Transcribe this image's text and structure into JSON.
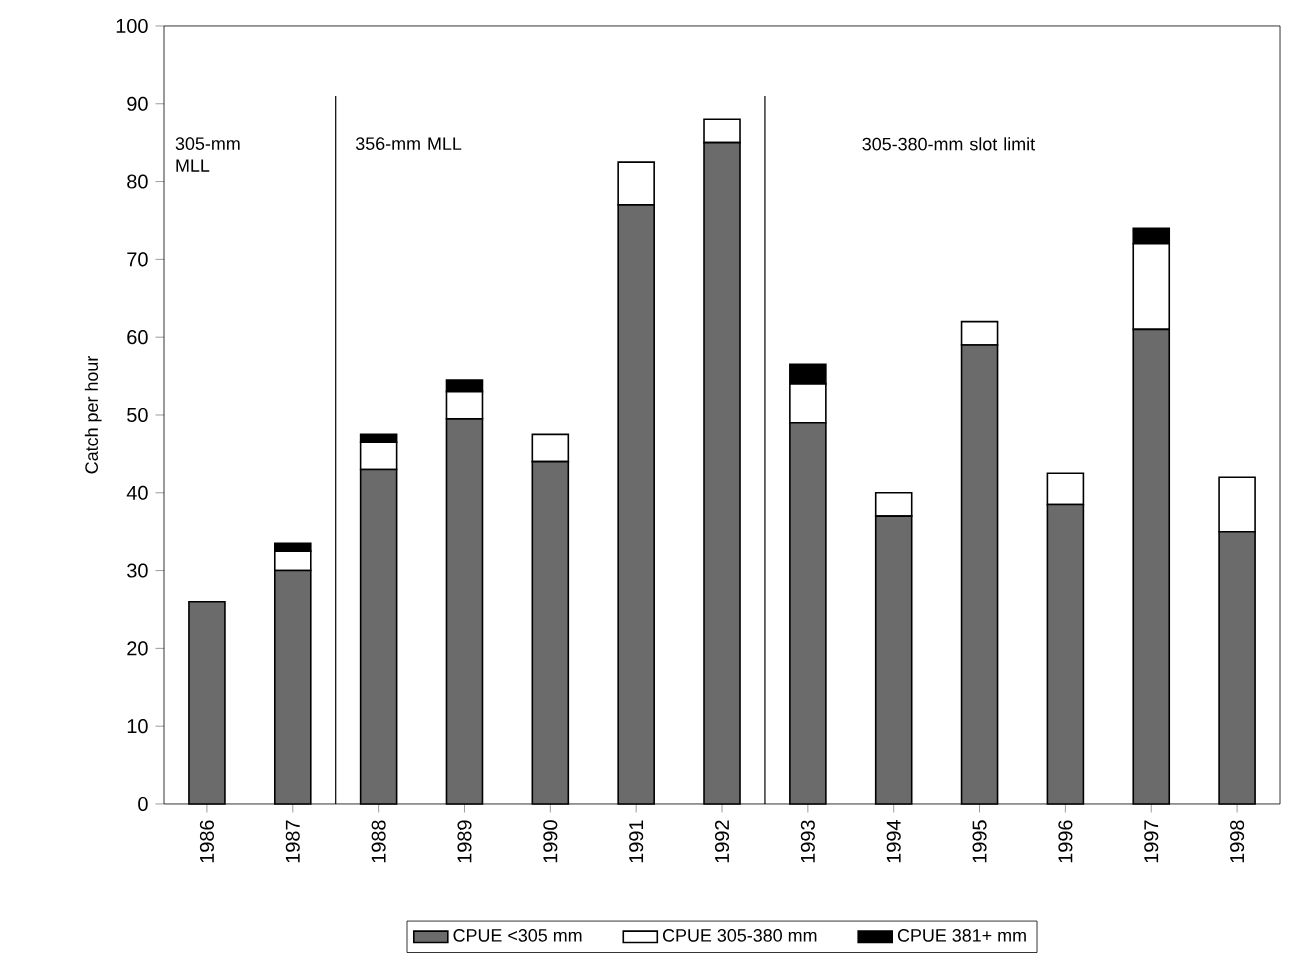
{
  "chart_data": {
    "type": "bar",
    "stacked": true,
    "ylabel": "Catch per hour",
    "categories": [
      "1986",
      "1987",
      "1988",
      "1989",
      "1990",
      "1991",
      "1992",
      "1993",
      "1994",
      "1995",
      "1996",
      "1997",
      "1998"
    ],
    "series": [
      {
        "name": "CPUE <305 mm",
        "color": "#6b6b6b",
        "values": [
          26,
          30,
          43,
          49.5,
          44,
          77,
          85,
          49,
          37,
          59,
          38.5,
          61,
          35
        ]
      },
      {
        "name": "CPUE 305-380 mm",
        "color": "#ffffff",
        "values": [
          0,
          2.5,
          3.5,
          3.5,
          3.5,
          5.5,
          3,
          5,
          3,
          3,
          4,
          11,
          7
        ]
      },
      {
        "name": "CPUE 381+ mm",
        "color": "#000000",
        "values": [
          0,
          1,
          1,
          1.5,
          0,
          0,
          0,
          2.5,
          0,
          0,
          0,
          2,
          0
        ]
      }
    ],
    "ylim": [
      0,
      100
    ],
    "yticks": [
      0,
      10,
      20,
      30,
      40,
      50,
      60,
      70,
      80,
      90,
      100
    ],
    "annotations": [
      "305-mm MLL",
      "356-mm MLL",
      "305-380-mm slot limit"
    ],
    "legend": "bottom",
    "grid": false
  }
}
